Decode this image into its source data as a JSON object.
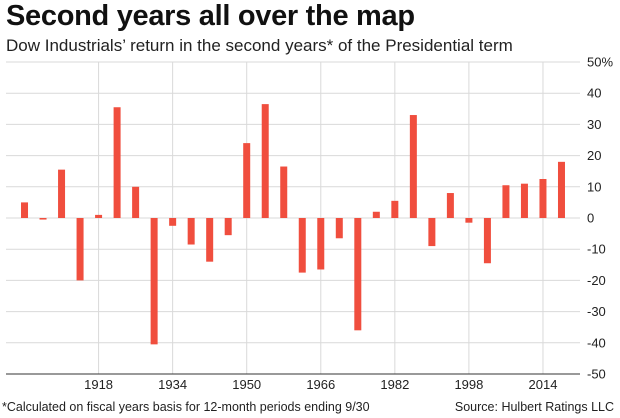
{
  "header": {
    "title": "Second years all over the map",
    "subtitle": "Dow Industrials’ return in the second years* of the Presidential term"
  },
  "footer": {
    "footnote": "*Calculated on fiscal years basis for 12-month periods ending 9/30",
    "source": "Source: Hulbert Ratings LLC"
  },
  "colors": {
    "bar": "#f04e3e",
    "grid": "#d9d9d9",
    "axis": "#333333"
  },
  "chart_data": {
    "type": "bar",
    "title": "Second years all over the map",
    "subtitle": "Dow Industrials’ return in the second years* of the Presidential term",
    "xlabel": "",
    "ylabel": "",
    "ylim": [
      -50,
      50
    ],
    "yticks": [
      -50,
      -40,
      -30,
      -20,
      -10,
      0,
      10,
      20,
      30,
      40,
      50
    ],
    "ytick_labels": [
      "-50",
      "-40",
      "-30",
      "-20",
      "-10",
      "0",
      "10",
      "20",
      "30",
      "40",
      "50%"
    ],
    "xlim": [
      1898,
      2022
    ],
    "xtick_labels": [
      "1918",
      "1934",
      "1950",
      "1966",
      "1982",
      "1998",
      "2014"
    ],
    "grid": true,
    "y_axis_side": "right",
    "categories": [
      "1902",
      "1906",
      "1910",
      "1914",
      "1918",
      "1922",
      "1926",
      "1930",
      "1934",
      "1938",
      "1942",
      "1946",
      "1950",
      "1954",
      "1958",
      "1962",
      "1966",
      "1970",
      "1974",
      "1978",
      "1982",
      "1986",
      "1990",
      "1994",
      "1998",
      "2002",
      "2006",
      "2010",
      "2014",
      "2018"
    ],
    "values": [
      5,
      -0.5,
      15.5,
      -20,
      1,
      35.5,
      10,
      -40.5,
      -2.5,
      -8.5,
      -14,
      -5.5,
      24,
      36.5,
      16.5,
      -17.5,
      -16.5,
      -6.5,
      -36,
      2,
      5.5,
      33,
      -9,
      8,
      -1.5,
      -14.5,
      10.5,
      11,
      12.5,
      18
    ]
  }
}
